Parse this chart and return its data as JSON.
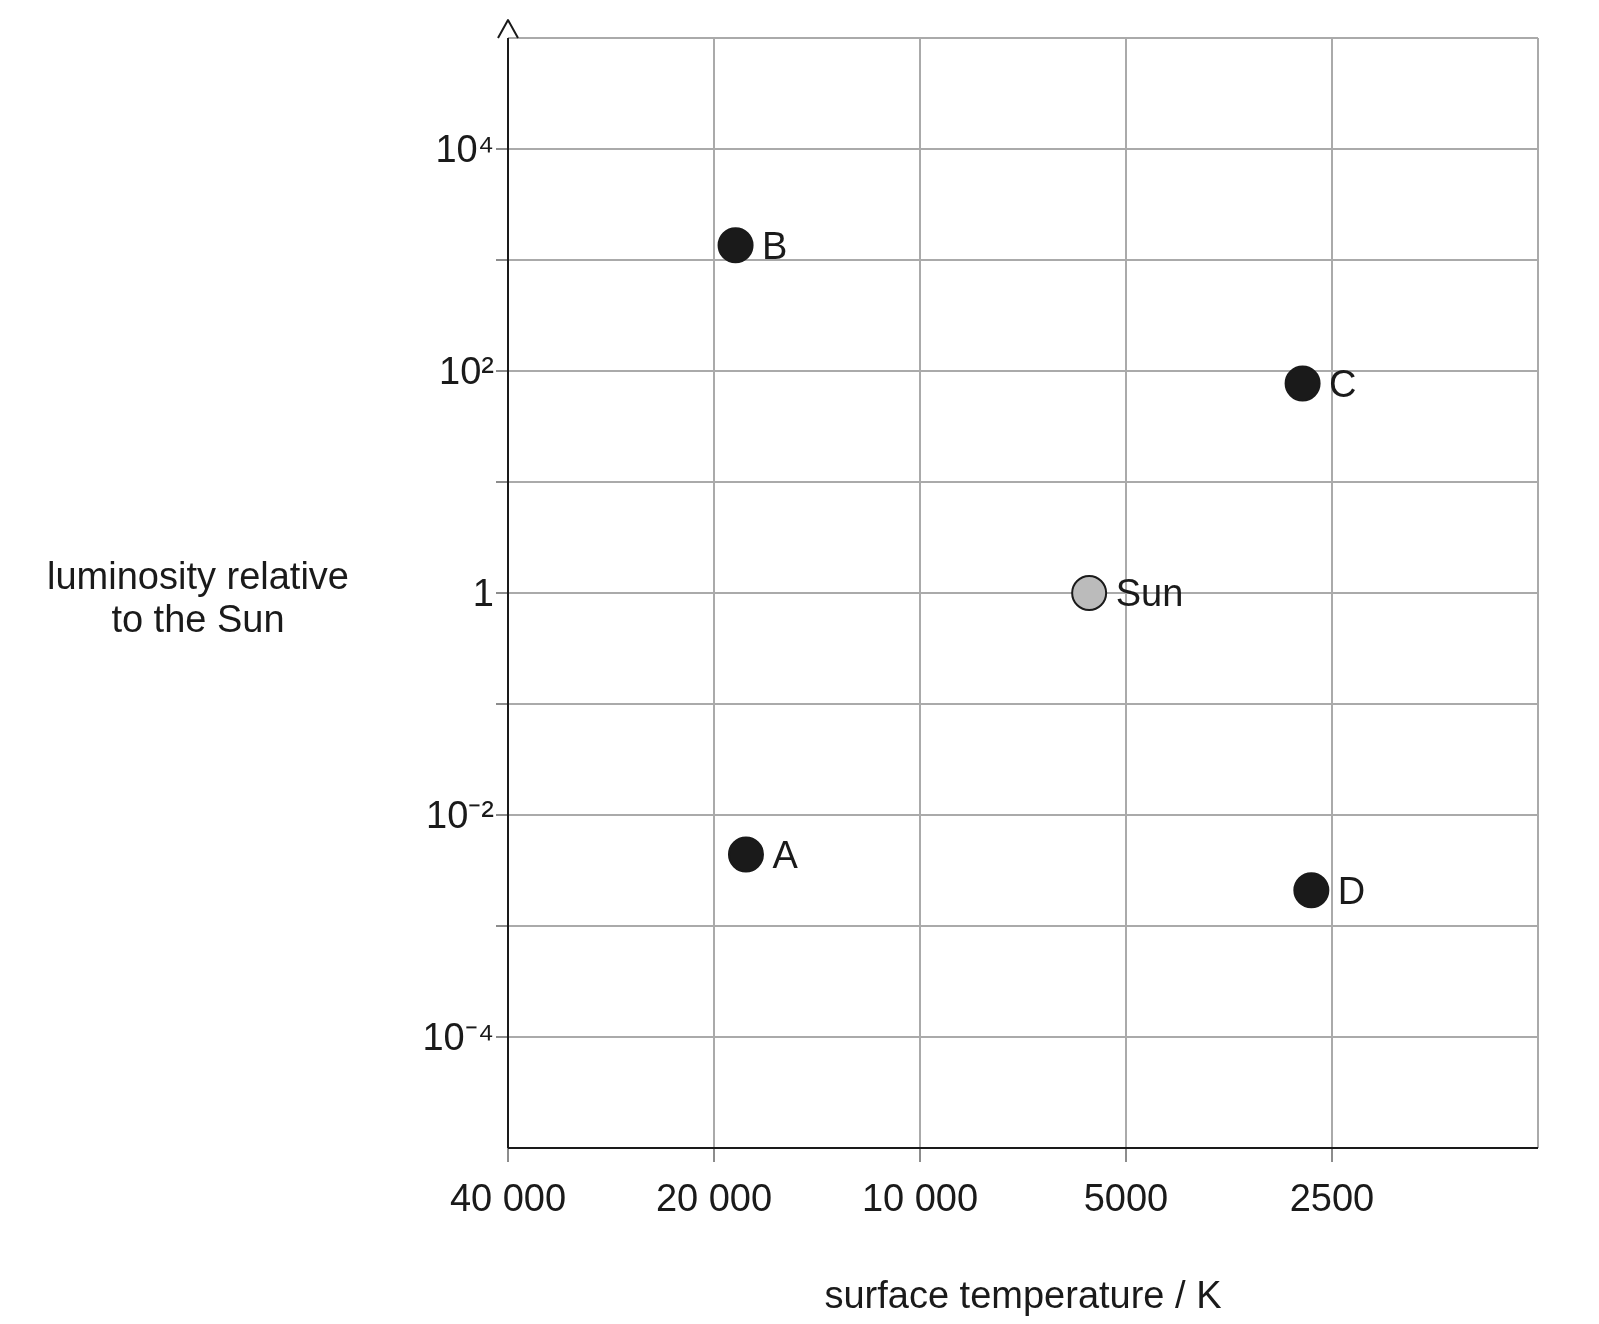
{
  "chart_data": {
    "type": "scatter",
    "xlabel": "surface temperature / K",
    "ylabel": "luminosity relative to the Sun",
    "log": "xy",
    "xlim": [
      40000,
      1250
    ],
    "ylim": [
      1e-05,
      100000
    ],
    "xticks": [
      {
        "value": 40000,
        "label": "40 000"
      },
      {
        "value": 20000,
        "label": "20 000"
      },
      {
        "value": 10000,
        "label": "10 000"
      },
      5000,
      2500
    ],
    "yticks": [
      {
        "value": 0.0001,
        "label": "10⁻⁴"
      },
      {
        "value": 0.001,
        "label": null
      },
      {
        "value": 0.01,
        "label": "10⁻²"
      },
      {
        "value": 0.1,
        "label": null
      },
      1,
      {
        "value": 10,
        "label": null
      },
      {
        "value": 100,
        "label": "10²"
      },
      {
        "value": 1000,
        "label": null
      },
      {
        "value": 10000,
        "label": "10⁴"
      }
    ],
    "grid": true,
    "marker": "circle",
    "series": [
      {
        "name": "A",
        "color": "#1a1a1a",
        "x": [
          17960
        ],
        "values": [
          0.0044
        ]
      },
      {
        "name": "B",
        "color": "#1a1a1a",
        "x": [
          18600
        ],
        "values": [
          1360
        ]
      },
      {
        "name": "C",
        "color": "#1a1a1a",
        "x": [
          2760
        ],
        "values": [
          77
        ]
      },
      {
        "name": "D",
        "color": "#1a1a1a",
        "x": [
          2680
        ],
        "values": [
          0.0021
        ]
      },
      {
        "name": "Sun",
        "color": "#bbbbbb",
        "x": [
          5660
        ],
        "values": [
          1
        ]
      }
    ]
  }
}
